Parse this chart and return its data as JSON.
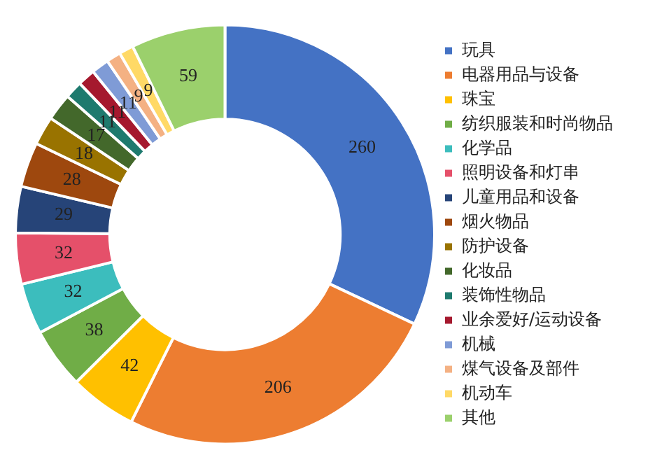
{
  "chart_data": {
    "type": "donut",
    "categories": [
      "玩具",
      "电器用品与设备",
      "珠宝",
      "纺织服装和时尚物品",
      "化学品",
      "照明设备和灯串",
      "儿童用品和设备",
      "烟火物品",
      "防护设备",
      "化妆品",
      "装饰性物品",
      "业余爱好/运动设备",
      "机械",
      "煤气设备及部件",
      "机动车",
      "其他"
    ],
    "values": [
      260,
      206,
      42,
      38,
      32,
      32,
      29,
      28,
      18,
      17,
      11,
      11,
      11,
      9,
      9,
      59
    ],
    "colors": [
      "#4472c4",
      "#ed7d31",
      "#ffc000",
      "#70ad47",
      "#3cbdbd",
      "#e5506a",
      "#264478",
      "#9e480e",
      "#997300",
      "#43682b",
      "#1e7a6e",
      "#a5192e",
      "#7f9bd6",
      "#f4b183",
      "#ffd966",
      "#9bd06c"
    ],
    "data_labels": true,
    "legend": "right"
  }
}
